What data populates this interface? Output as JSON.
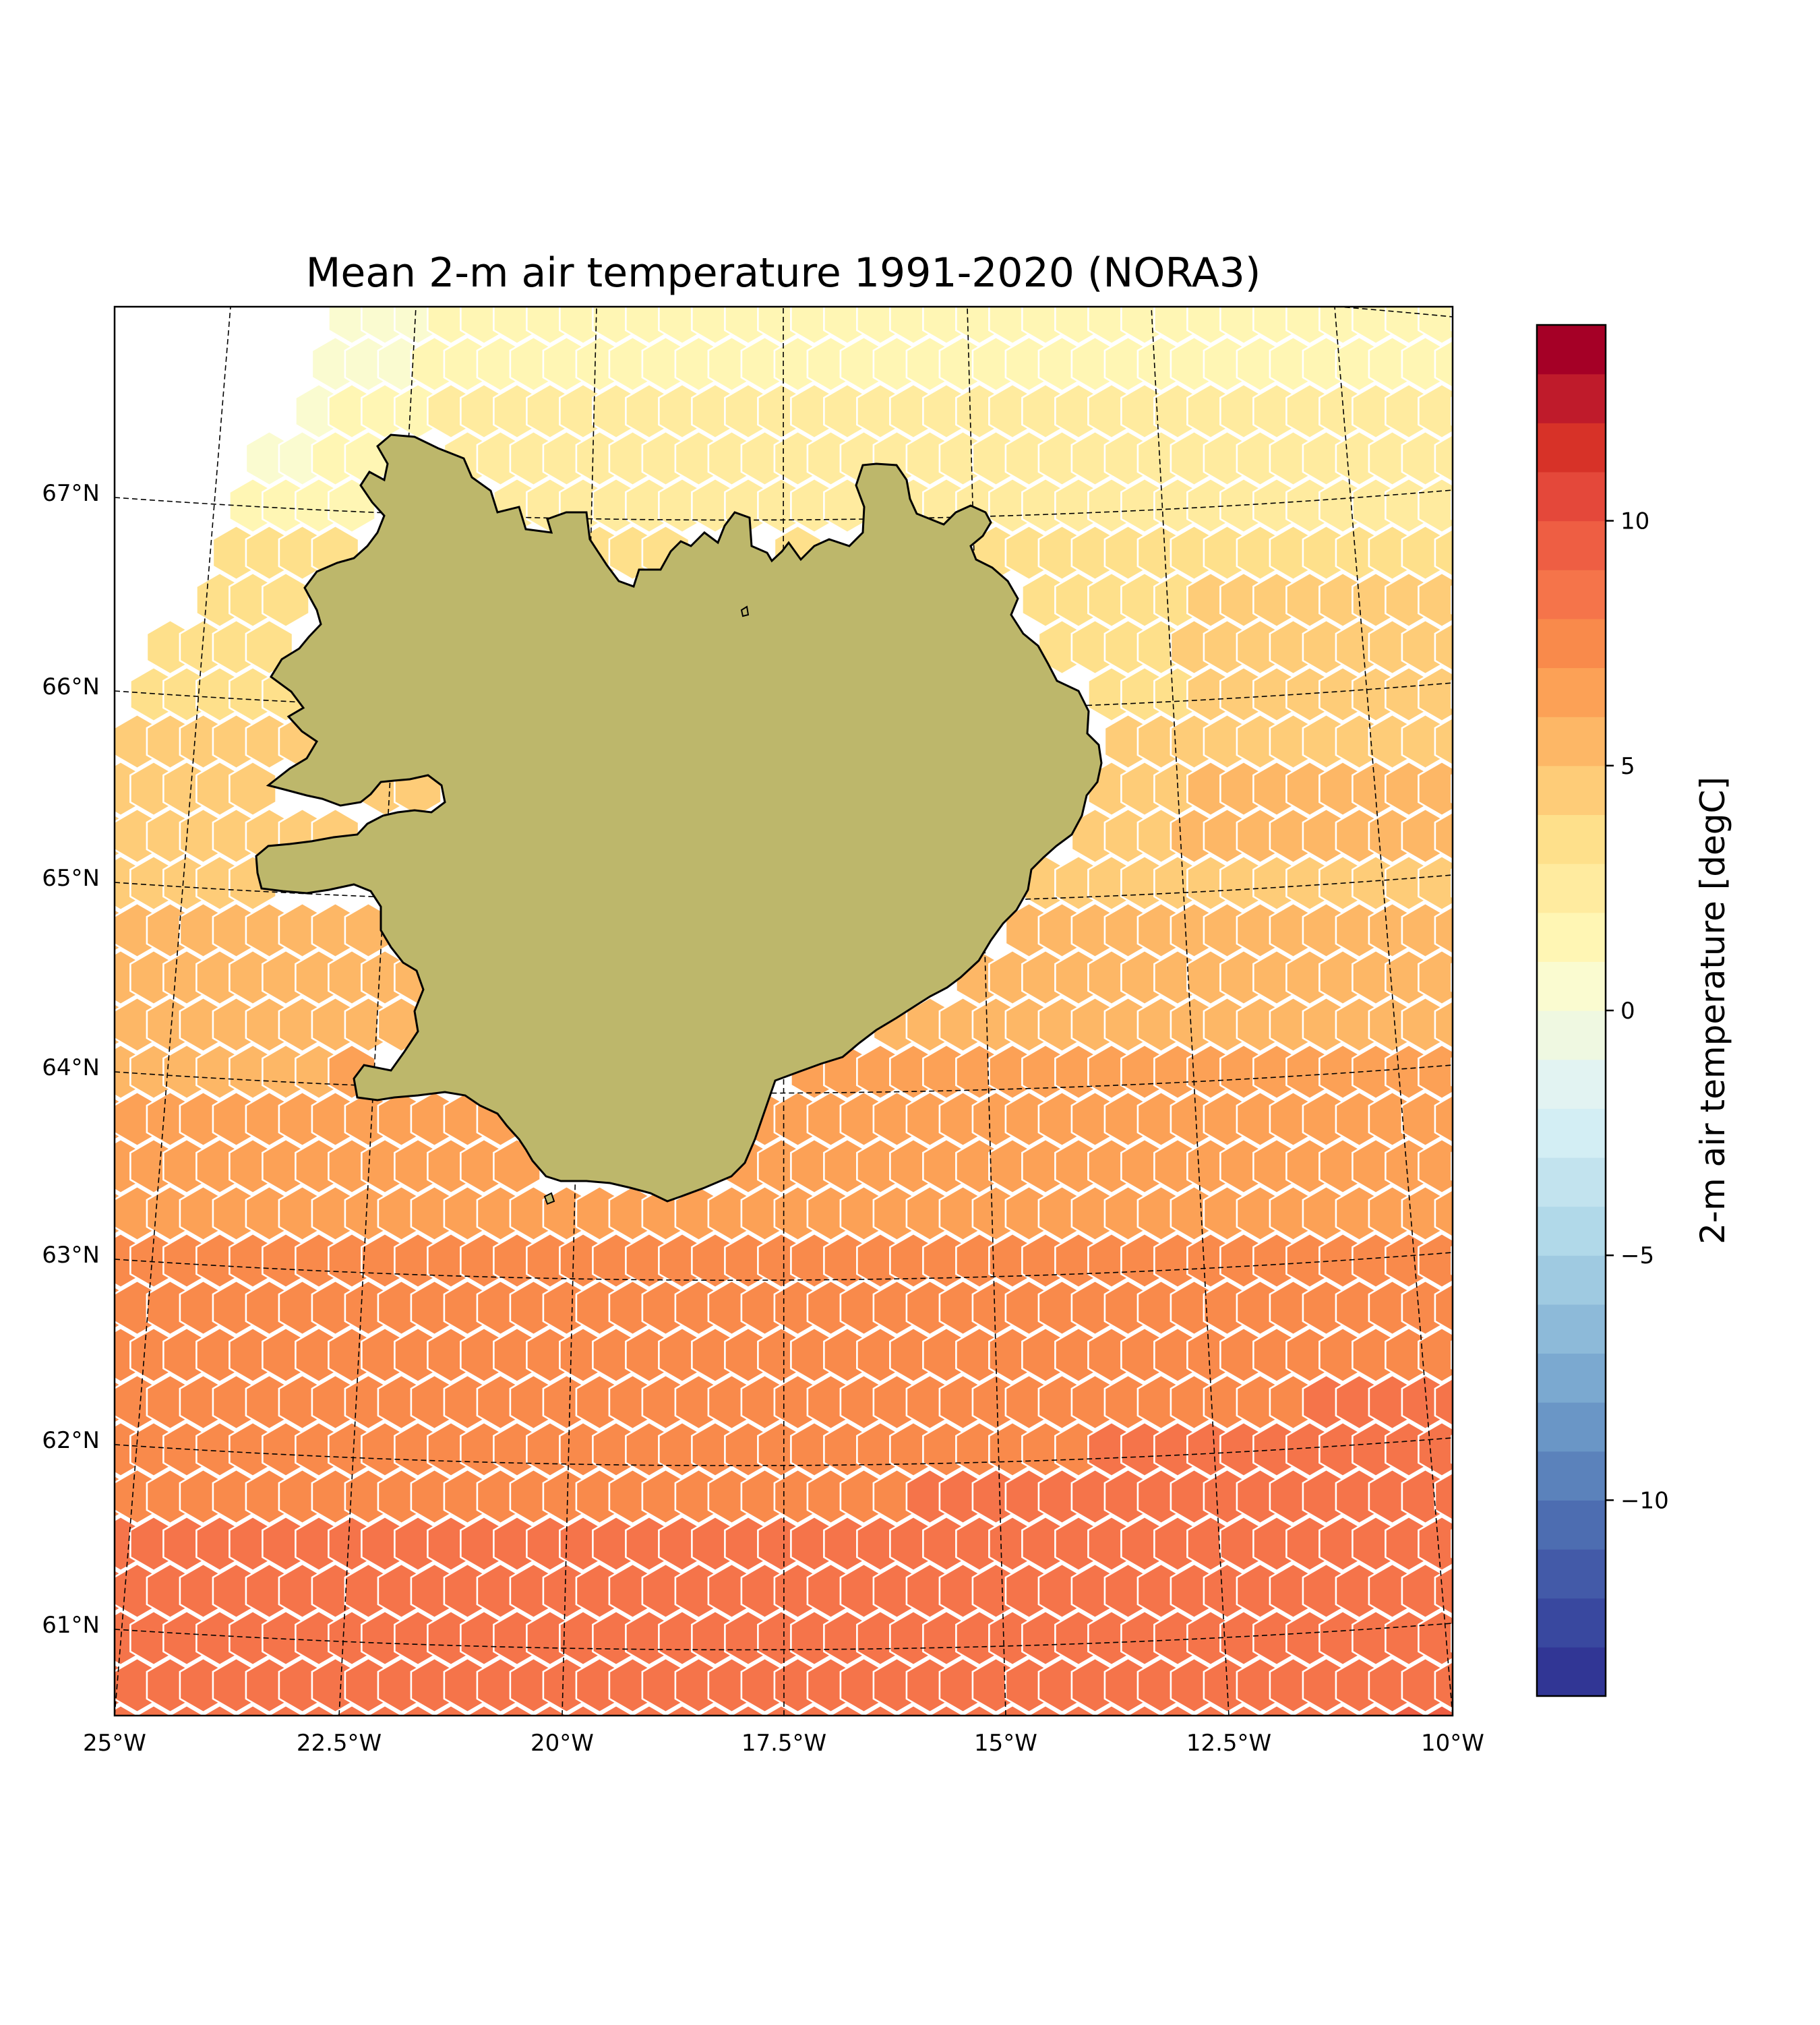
{
  "title": "Mean 2-m air temperature 1991-2020 (NORA3)",
  "lat_labels": [
    "67°N",
    "66°N",
    "65°N",
    "64°N",
    "63°N",
    "62°N",
    "61°N"
  ],
  "lon_labels": [
    "25°W",
    "22.5°W",
    "20°W",
    "17.5°W",
    "15°W",
    "12.5°W",
    "10°W"
  ],
  "colorbar": {
    "label": "2-m air temperature [degC]",
    "ticks": [
      {
        "value": 10,
        "label": "10"
      },
      {
        "value": 5,
        "label": "5"
      },
      {
        "value": 0,
        "label": "0"
      },
      {
        "value": -5,
        "label": "−5"
      },
      {
        "value": -10,
        "label": "−10"
      }
    ],
    "vmin": -14,
    "vmax": 14,
    "levels": 28,
    "colors": [
      "#313695",
      "#39489f",
      "#435aa8",
      "#4d6db1",
      "#5b82bb",
      "#6a96c6",
      "#7ba9d0",
      "#8dbad9",
      "#9fcae1",
      "#b1d9e9",
      "#c2e3ee",
      "#d3eef4",
      "#e2f3f2",
      "#eff8e1",
      "#fafbd0",
      "#fff6b4",
      "#ffeb9f",
      "#fee08b",
      "#fecc78",
      "#fdb766",
      "#fca156",
      "#f98a4b",
      "#f5744a",
      "#ee5e43",
      "#e4483a",
      "#d73228",
      "#bf1b2b",
      "#a50026"
    ],
    "land_color": "#bdb76b"
  },
  "map_data": {
    "projection": "polar-stereographic",
    "extent_lon": [
      -25,
      -10
    ],
    "extent_lat": [
      60.5,
      68
    ],
    "land_label": "Iceland",
    "field_summary": [
      {
        "region": "north (lat 67-68)",
        "value": 2.0
      },
      {
        "region": "northwest edge (lat 67.5-68, lon -23 to -22)",
        "value": 1.0
      },
      {
        "region": "lat 66-67",
        "value": 3.5
      },
      {
        "region": "lat 65-66",
        "value": 4.2
      },
      {
        "region": "lat 64-65",
        "value": 5.5
      },
      {
        "region": "lat 63-64",
        "value": 6.5
      },
      {
        "region": "lat 62-63",
        "value": 7.3
      },
      {
        "region": "lat 61-62",
        "value": 8.0
      },
      {
        "region": "south-east (lat 60.5-61.5, lon -18 to -10)",
        "value": 8.6
      }
    ]
  }
}
